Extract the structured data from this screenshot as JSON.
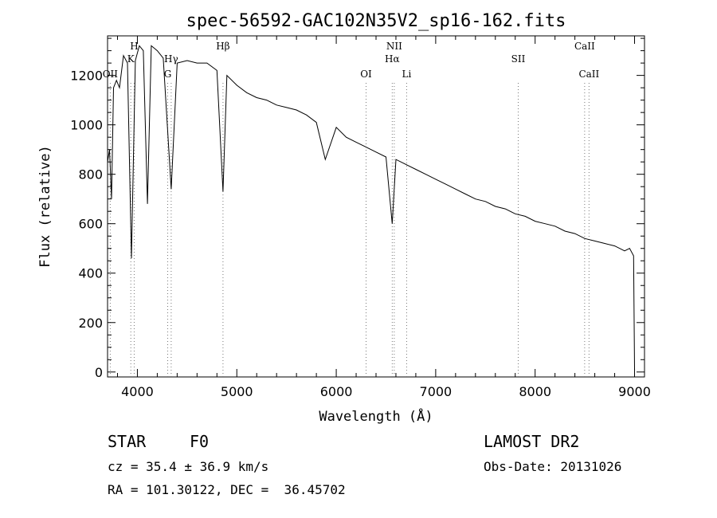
{
  "chart_data": {
    "type": "line",
    "title": "spec-56592-GAC102N35V2_sp16-162.fits",
    "xlabel": "Wavelength (Å)",
    "ylabel": "Flux (relative)",
    "xlim": [
      3700,
      9100
    ],
    "ylim": [
      -20,
      1360
    ],
    "x_ticks": [
      4000,
      5000,
      6000,
      7000,
      8000,
      9000
    ],
    "y_ticks": [
      0,
      200,
      400,
      600,
      800,
      1000,
      1200
    ],
    "x_tick_labels": [
      "4000",
      "5000",
      "6000",
      "7000",
      "8000",
      "9000"
    ],
    "y_tick_labels": [
      "0",
      "200",
      "400",
      "600",
      "800",
      "1000",
      "1200"
    ],
    "grid": false,
    "lines": [
      {
        "label": "OII",
        "x": 3727,
        "level": 3
      },
      {
        "label": "H",
        "x": 3968,
        "level": 1
      },
      {
        "label": "K",
        "x": 3934,
        "level": 2
      },
      {
        "label": "G",
        "x": 4305,
        "level": 3
      },
      {
        "label": "Hγ",
        "x": 4340,
        "level": 2
      },
      {
        "label": "Hβ",
        "x": 4861,
        "level": 1
      },
      {
        "label": "OI",
        "x": 6300,
        "level": 3
      },
      {
        "label": "NII",
        "x": 6583,
        "level": 1
      },
      {
        "label": "Hα",
        "x": 6563,
        "level": 2
      },
      {
        "label": "Li",
        "x": 6708,
        "level": 3
      },
      {
        "label": "SII",
        "x": 7830,
        "level": 2
      },
      {
        "label": "CaII",
        "x": 8498,
        "level": 1
      },
      {
        "label": "CaII",
        "x": 8542,
        "level": 3
      }
    ],
    "series": [
      {
        "x": [
          3700,
          3720,
          3740,
          3760,
          3790,
          3820,
          3860,
          3900,
          3940,
          3980,
          4020,
          4060,
          4101,
          4140,
          4200,
          4260,
          4340,
          4400,
          4500,
          4600,
          4700,
          4800,
          4861,
          4900,
          5000,
          5100,
          5200,
          5300,
          5400,
          5500,
          5600,
          5700,
          5800,
          5890,
          6000,
          6100,
          6200,
          6300,
          6400,
          6500,
          6563,
          6600,
          6700,
          6800,
          6900,
          7000,
          7100,
          7200,
          7300,
          7400,
          7500,
          7600,
          7700,
          7800,
          7900,
          8000,
          8100,
          8200,
          8300,
          8400,
          8500,
          8600,
          8700,
          8800,
          8900,
          8950,
          8990,
          9000
        ],
        "y": [
          850,
          900,
          700,
          1150,
          1180,
          1150,
          1280,
          1250,
          460,
          1260,
          1320,
          1300,
          680,
          1320,
          1300,
          1270,
          740,
          1250,
          1260,
          1250,
          1250,
          1220,
          730,
          1200,
          1160,
          1130,
          1110,
          1100,
          1080,
          1070,
          1060,
          1040,
          1010,
          860,
          990,
          950,
          930,
          910,
          890,
          870,
          600,
          860,
          840,
          820,
          800,
          780,
          760,
          740,
          720,
          700,
          690,
          670,
          660,
          640,
          630,
          610,
          600,
          590,
          570,
          560,
          540,
          530,
          520,
          510,
          490,
          500,
          470,
          10
        ]
      }
    ]
  },
  "info": {
    "object_class": "STAR",
    "subclass": "F0",
    "survey": "LAMOST DR2",
    "redshift": "cz = 35.4 ± 36.9 km/s",
    "obs_date": "Obs-Date: 20131026",
    "coords": "RA = 101.30122, DEC =  36.45702"
  }
}
